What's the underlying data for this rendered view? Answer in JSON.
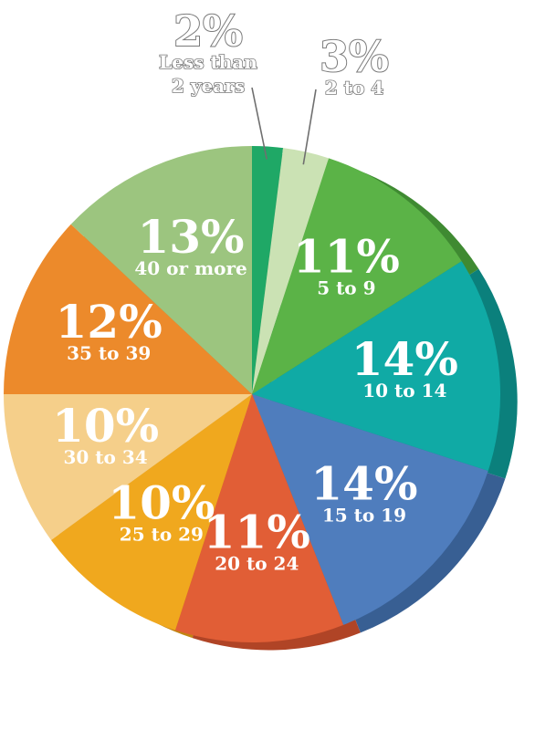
{
  "chart_data": {
    "type": "pie",
    "title": "",
    "slices": [
      {
        "label": "Less than 2 years",
        "label_lines": [
          "Less than",
          "2 years"
        ],
        "value": 2,
        "percent_label": "2%",
        "color": "#1fa866",
        "side": "#17804d",
        "outside": true
      },
      {
        "label": "2 to 4",
        "label_lines": [
          "2 to 4"
        ],
        "value": 3,
        "percent_label": "3%",
        "color": "#cbe2b4",
        "side": "#a9c595",
        "outside": true
      },
      {
        "label": "5 to 9",
        "label_lines": [
          "5 to 9"
        ],
        "value": 11,
        "percent_label": "11%",
        "color": "#5bb347",
        "side": "#3f8a32",
        "outside": false
      },
      {
        "label": "10 to 14",
        "label_lines": [
          "10 to 14"
        ],
        "value": 14,
        "percent_label": "14%",
        "color": "#10aaa5",
        "side": "#0b807c",
        "outside": false
      },
      {
        "label": "15 to 19",
        "label_lines": [
          "15 to 19"
        ],
        "value": 14,
        "percent_label": "14%",
        "color": "#4f7dbd",
        "side": "#385f93",
        "outside": false
      },
      {
        "label": "20 to 24",
        "label_lines": [
          "20 to 24"
        ],
        "value": 11,
        "percent_label": "11%",
        "color": "#e15e36",
        "side": "#b04426",
        "outside": false
      },
      {
        "label": "25 to 29",
        "label_lines": [
          "25 to 29"
        ],
        "value": 10,
        "percent_label": "10%",
        "color": "#f0a81e",
        "side": "#c28412",
        "outside": false
      },
      {
        "label": "30 to 34",
        "label_lines": [
          "30 to 34"
        ],
        "value": 10,
        "percent_label": "10%",
        "color": "#f5cf8a",
        "side": "#d4ad6a",
        "outside": false
      },
      {
        "label": "35 to 39",
        "label_lines": [
          "35 to 39"
        ],
        "value": 12,
        "percent_label": "12%",
        "color": "#ec8a2b",
        "side": "#c06b1c",
        "outside": false
      },
      {
        "label": "40 or more",
        "label_lines": [
          "40 or more"
        ],
        "value": 13,
        "percent_label": "13%",
        "color": "#9cc57f",
        "side": "#7ba262",
        "outside": false
      }
    ]
  }
}
